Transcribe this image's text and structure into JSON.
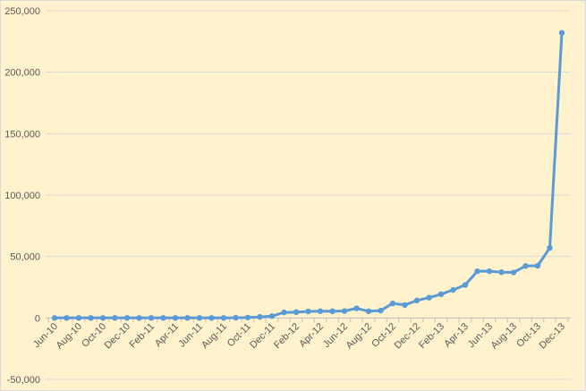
{
  "chart_data": {
    "type": "line",
    "title": "",
    "xlabel": "",
    "ylabel": "",
    "ylim": [
      -50000,
      250000
    ],
    "y_ticks": [
      "-50,000",
      "0",
      "50,000",
      "100,000",
      "150,000",
      "200,000",
      "250,000"
    ],
    "y_tick_values": [
      -50000,
      0,
      50000,
      100000,
      150000,
      200000,
      250000
    ],
    "x": [
      "Jun-10",
      "Jul-10",
      "Aug-10",
      "Sep-10",
      "Oct-10",
      "Nov-10",
      "Dec-10",
      "Jan-11",
      "Feb-11",
      "Mar-11",
      "Apr-11",
      "May-11",
      "Jun-11",
      "Jul-11",
      "Aug-11",
      "Sep-11",
      "Oct-11",
      "Nov-11",
      "Dec-11",
      "Jan-12",
      "Feb-12",
      "Mar-12",
      "Apr-12",
      "May-12",
      "Jun-12",
      "Jul-12",
      "Aug-12",
      "Sep-12",
      "Oct-12",
      "Nov-12",
      "Dec-12",
      "Jan-13",
      "Feb-13",
      "Mar-13",
      "Apr-13",
      "May-13",
      "Jun-13",
      "Jul-13",
      "Aug-13",
      "Sep-13",
      "Oct-13",
      "Nov-13",
      "Dec-13"
    ],
    "x_tick_labels": [
      "Jun-10",
      "Aug-10",
      "Oct-10",
      "Dec-10",
      "Feb-11",
      "Apr-11",
      "Jun-11",
      "Aug-11",
      "Oct-11",
      "Dec-11",
      "Feb-12",
      "Apr-12",
      "Jun-12",
      "Aug-12",
      "Oct-12",
      "Dec-12",
      "Feb-13",
      "Apr-13",
      "Jun-13",
      "Aug-13",
      "Oct-13",
      "Dec-13"
    ],
    "series": [
      {
        "values": [
          0,
          0,
          0,
          0,
          0,
          0,
          0,
          0,
          0,
          0,
          0,
          0,
          0,
          0,
          0,
          200,
          300,
          800,
          1500,
          4500,
          4700,
          5300,
          5500,
          5400,
          5600,
          7800,
          5400,
          6000,
          11800,
          10500,
          14200,
          16500,
          19300,
          22800,
          26800,
          38000,
          38000,
          37200,
          37000,
          42300,
          42500,
          57000,
          232000
        ]
      }
    ],
    "grid": true,
    "legend": "none",
    "colors": {
      "series": "#5b9bd5",
      "background": "#fff2cc",
      "gridline": "#d9d9d9",
      "tick_text": "#595959"
    }
  }
}
